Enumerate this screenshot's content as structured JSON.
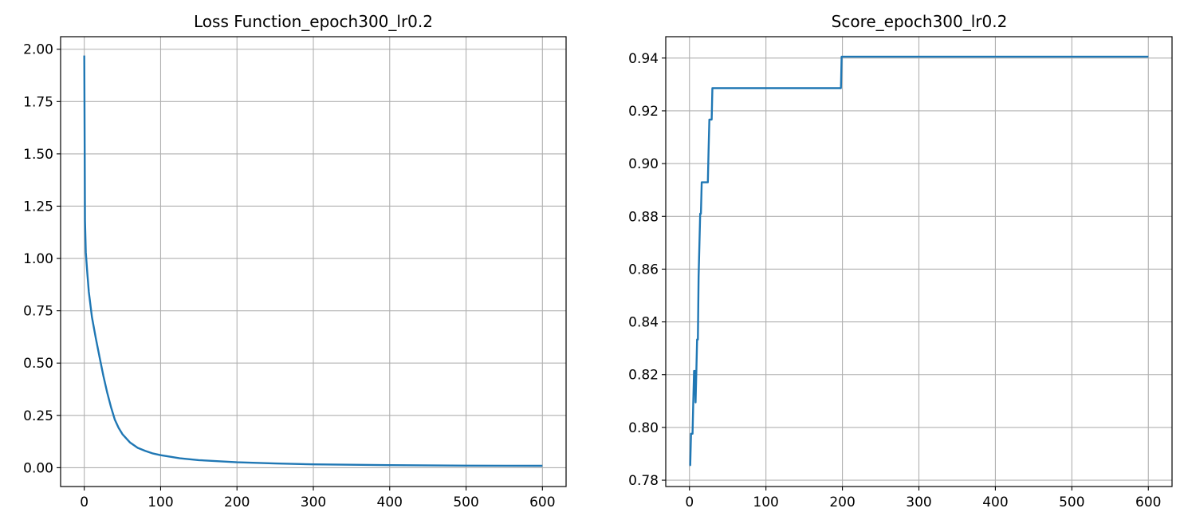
{
  "chart_data": [
    {
      "type": "line",
      "title": "Loss Function_epoch300_lr0.2",
      "xlabel": "",
      "ylabel": "",
      "xlim": [
        -31,
        631
      ],
      "ylim": [
        -0.09,
        2.06
      ],
      "grid": true,
      "xticks": [
        0,
        100,
        200,
        300,
        400,
        500,
        600
      ],
      "xtick_labels": [
        "0",
        "100",
        "200",
        "300",
        "400",
        "500",
        "600"
      ],
      "yticks": [
        0.0,
        0.25,
        0.5,
        0.75,
        1.0,
        1.25,
        1.5,
        1.75,
        2.0
      ],
      "ytick_labels": [
        "0.00",
        "0.25",
        "0.50",
        "0.75",
        "1.00",
        "1.25",
        "1.50",
        "1.75",
        "2.00"
      ],
      "series": [
        {
          "color": "#1f77b4",
          "x": [
            0,
            1,
            2,
            4,
            6,
            10,
            15,
            20,
            25,
            30,
            35,
            40,
            45,
            50,
            60,
            70,
            80,
            90,
            100,
            125,
            150,
            200,
            250,
            300,
            400,
            500,
            600
          ],
          "y": [
            1.97,
            1.18,
            1.03,
            0.93,
            0.84,
            0.72,
            0.62,
            0.53,
            0.44,
            0.36,
            0.29,
            0.23,
            0.19,
            0.16,
            0.12,
            0.095,
            0.08,
            0.068,
            0.06,
            0.045,
            0.036,
            0.026,
            0.02,
            0.016,
            0.012,
            0.01,
            0.009
          ]
        }
      ]
    },
    {
      "type": "line",
      "title": "Score_epoch300_lr0.2",
      "xlabel": "",
      "ylabel": "",
      "xlim": [
        -31,
        631
      ],
      "ylim": [
        0.7776,
        0.9481
      ],
      "grid": true,
      "xticks": [
        0,
        100,
        200,
        300,
        400,
        500,
        600
      ],
      "xtick_labels": [
        "0",
        "100",
        "200",
        "300",
        "400",
        "500",
        "600"
      ],
      "yticks": [
        0.78,
        0.8,
        0.82,
        0.84,
        0.86,
        0.88,
        0.9,
        0.92,
        0.94
      ],
      "ytick_labels": [
        "0.78",
        "0.80",
        "0.82",
        "0.84",
        "0.86",
        "0.88",
        "0.90",
        "0.92",
        "0.94"
      ],
      "series": [
        {
          "color": "#1f77b4",
          "x": [
            0,
            1,
            2,
            4,
            5,
            6,
            7,
            8,
            9,
            10,
            11,
            12,
            14,
            15,
            16,
            17,
            24,
            25,
            26,
            27,
            28,
            29,
            30,
            31,
            198,
            199,
            600
          ],
          "y": [
            0.7857,
            0.7857,
            0.7976,
            0.7976,
            0.8095,
            0.8214,
            0.8214,
            0.8095,
            0.8214,
            0.8333,
            0.8333,
            0.8571,
            0.881,
            0.881,
            0.8929,
            0.8929,
            0.8929,
            0.9048,
            0.9167,
            0.9167,
            0.9167,
            0.9167,
            0.9286,
            0.9286,
            0.9286,
            0.9405,
            0.9405
          ]
        }
      ]
    }
  ]
}
